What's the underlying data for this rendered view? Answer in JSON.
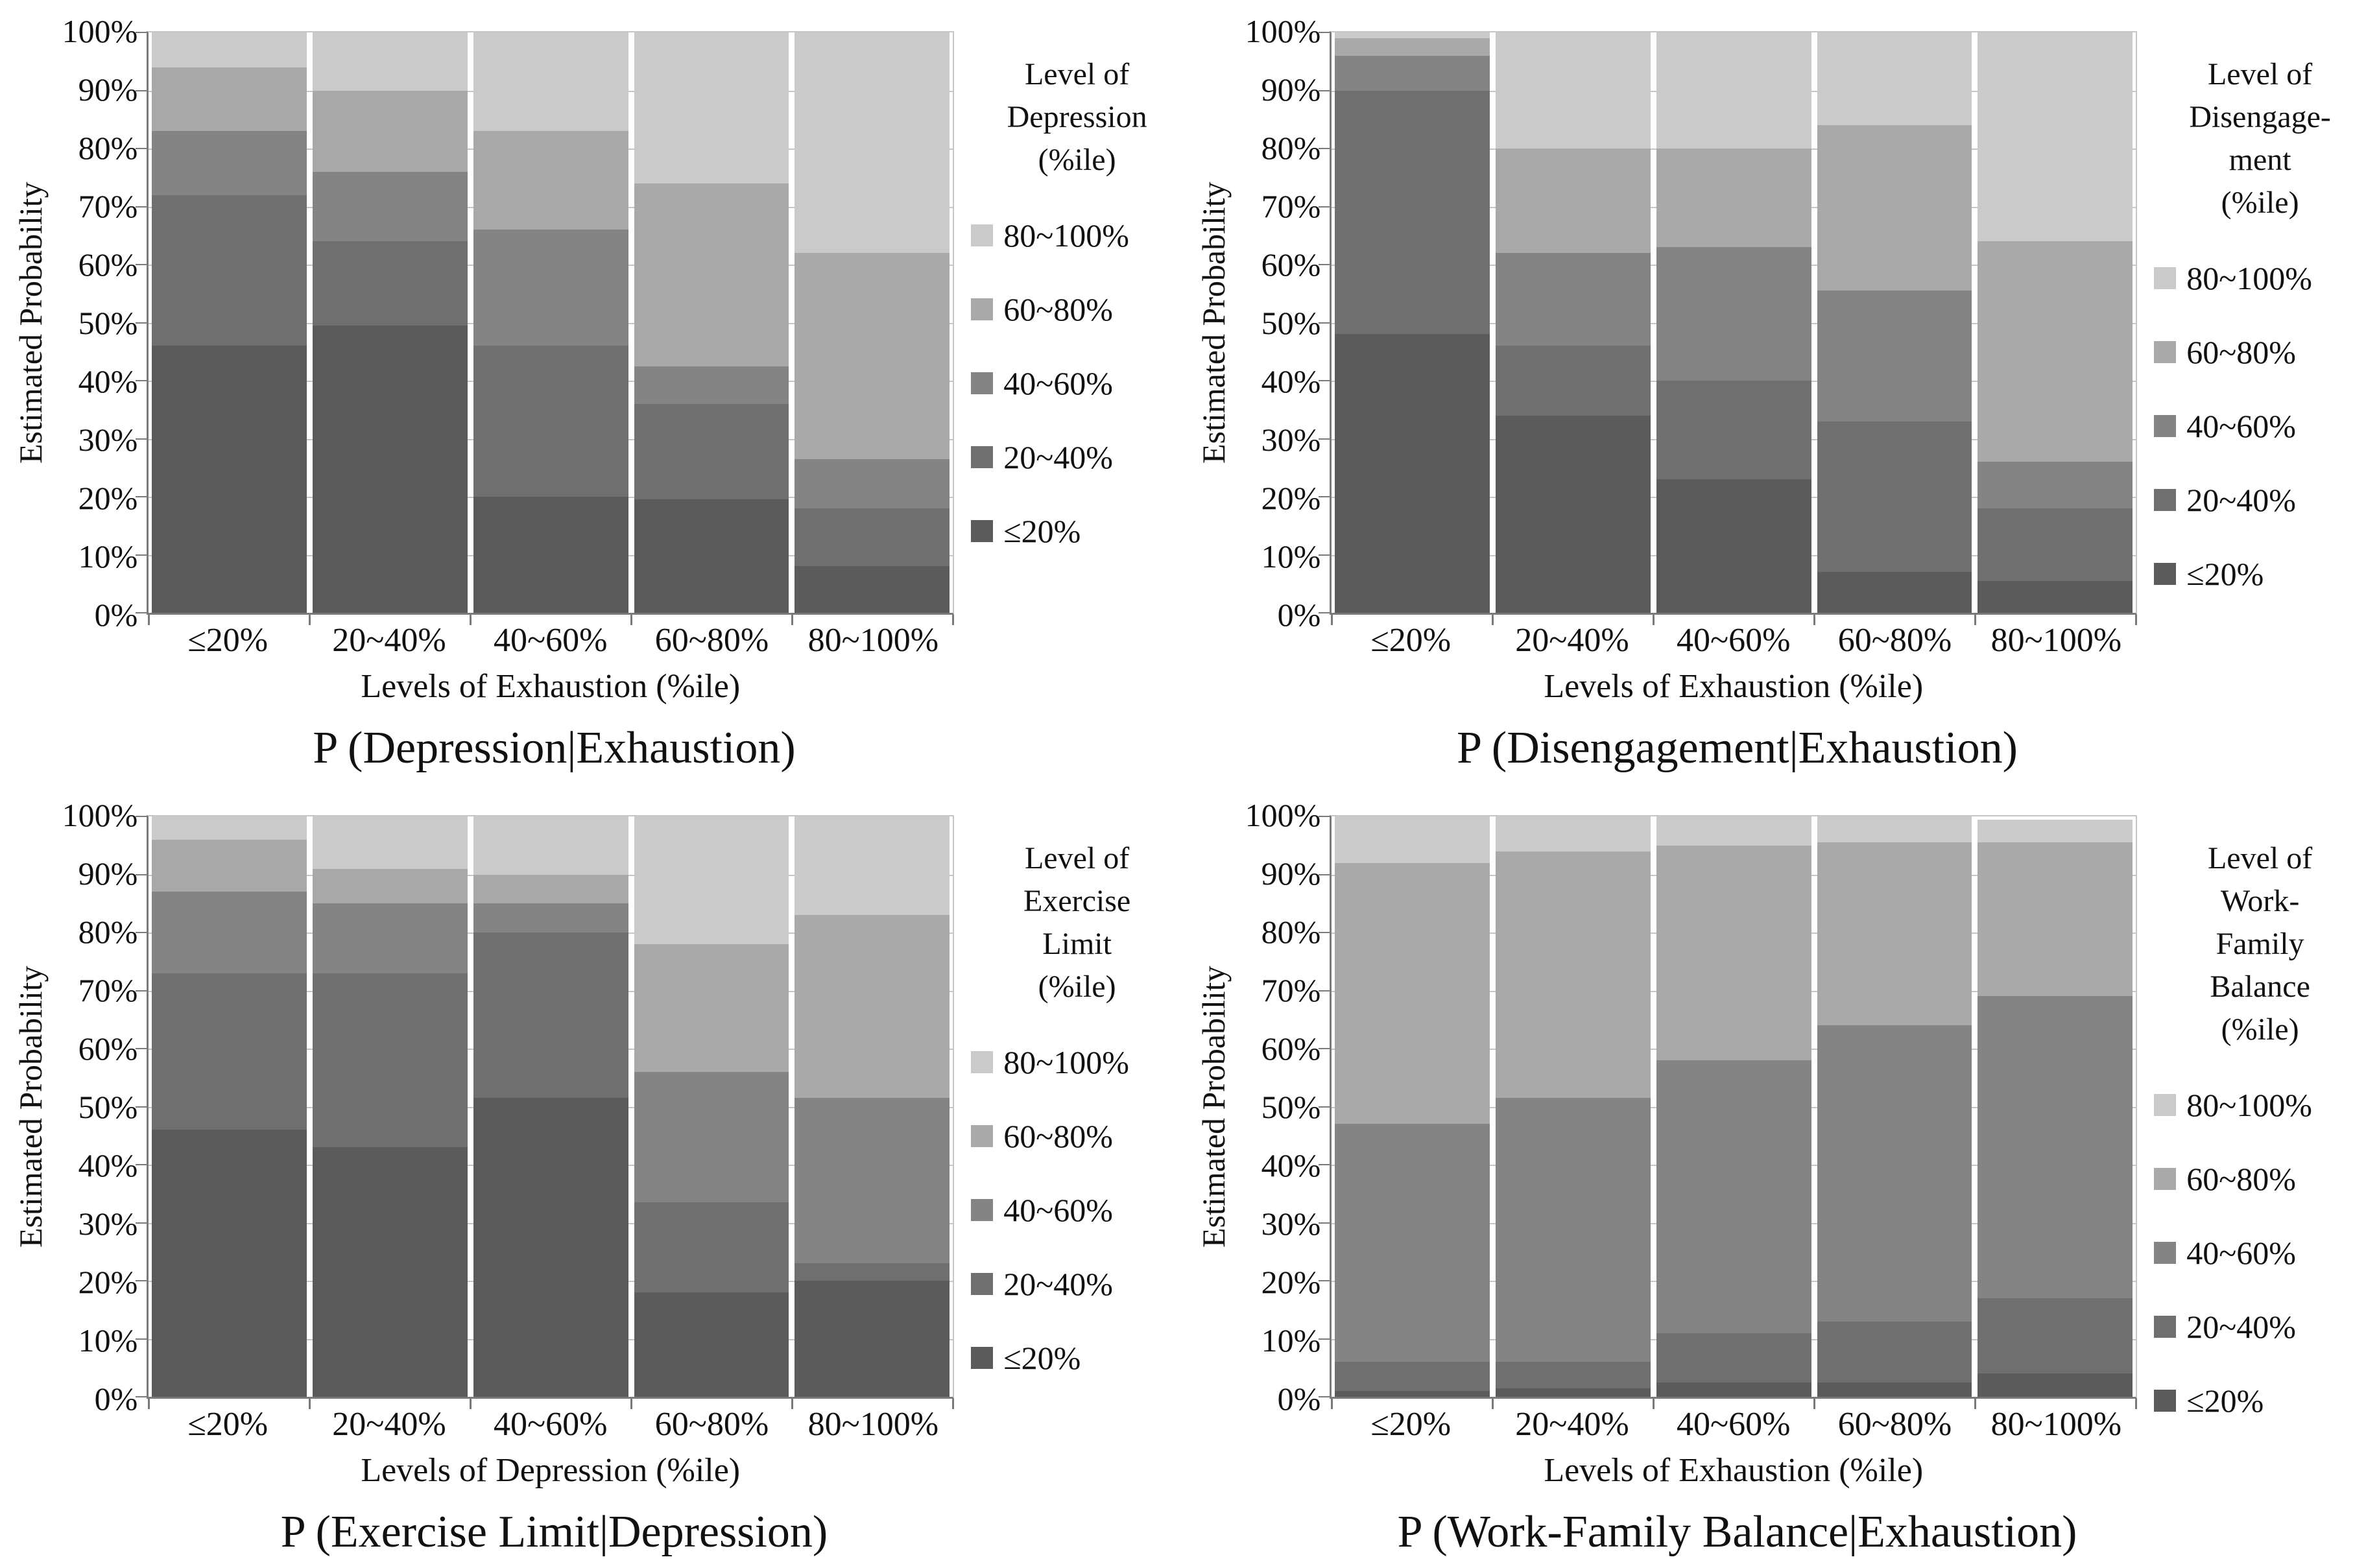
{
  "figure": {
    "background": "#ffffff"
  },
  "colors": {
    "segments": [
      "#5b5b5b",
      "#6f6f6f",
      "#848484",
      "#a9a9a9",
      "#cacaca"
    ],
    "gridline": "#c6c6c6",
    "axis": "#7a7a7a",
    "text": "#111111"
  },
  "y_axis": {
    "label": "Estimated Probability",
    "ticks": [
      "100%",
      "90%",
      "80%",
      "70%",
      "60%",
      "50%",
      "40%",
      "30%",
      "20%",
      "10%",
      "0%"
    ]
  },
  "x_categories": [
    "≤20%",
    "20~40%",
    "40~60%",
    "60~80%",
    "80~100%"
  ],
  "legend_entries_top_to_bottom": [
    "80~100%",
    "60~80%",
    "40~60%",
    "20~40%",
    "≤20%"
  ],
  "chart_data": [
    {
      "type": "bar",
      "stacked": true,
      "title": "P (Depression|Exhaustion)",
      "xlabel": "Levels of Exhaustion (%ile)",
      "ylabel": "Estimated Probability",
      "ylim": [
        0,
        100
      ],
      "grid": true,
      "legend_position": "right",
      "legend_title_lines": [
        "Level of",
        "Depression",
        "(%ile)"
      ],
      "categories": [
        "≤20%",
        "20~40%",
        "40~60%",
        "60~80%",
        "80~100%"
      ],
      "series": [
        {
          "name": "≤20%",
          "values": [
            46,
            49.5,
            20,
            19.5,
            8
          ]
        },
        {
          "name": "20~40%",
          "values": [
            26,
            14.5,
            26,
            16.5,
            10
          ]
        },
        {
          "name": "40~60%",
          "values": [
            11,
            12,
            20,
            6.5,
            8.5
          ]
        },
        {
          "name": "60~80%",
          "values": [
            11,
            14,
            17,
            31.5,
            35.5
          ]
        },
        {
          "name": "80~100%",
          "values": [
            6,
            10,
            17,
            26,
            38
          ]
        }
      ]
    },
    {
      "type": "bar",
      "stacked": true,
      "title": "P (Disengagement|Exhaustion)",
      "xlabel": "Levels of Exhaustion (%ile)",
      "ylabel": "Estimated Probability",
      "ylim": [
        0,
        100
      ],
      "grid": true,
      "legend_position": "right",
      "legend_title_lines": [
        "Level of",
        "Disengage-",
        "ment",
        "(%ile)"
      ],
      "categories": [
        "≤20%",
        "20~40%",
        "40~60%",
        "60~80%",
        "80~100%"
      ],
      "series": [
        {
          "name": "≤20%",
          "values": [
            48,
            34,
            23,
            7,
            5.5
          ]
        },
        {
          "name": "20~40%",
          "values": [
            42,
            12,
            17,
            26,
            12.5
          ]
        },
        {
          "name": "40~60%",
          "values": [
            6,
            16,
            23,
            22.5,
            8
          ]
        },
        {
          "name": "60~80%",
          "values": [
            3,
            18,
            17,
            28.5,
            38
          ]
        },
        {
          "name": "80~100%",
          "values": [
            1,
            20,
            20,
            16,
            36
          ]
        }
      ]
    },
    {
      "type": "bar",
      "stacked": true,
      "title": "P (Exercise Limit|Depression)",
      "xlabel": "Levels of Depression (%ile)",
      "ylabel": "Estimated Probability",
      "ylim": [
        0,
        100
      ],
      "grid": true,
      "legend_position": "right",
      "legend_title_lines": [
        "Level of",
        "Exercise",
        "Limit",
        "(%ile)"
      ],
      "categories": [
        "≤20%",
        "20~40%",
        "40~60%",
        "60~80%",
        "80~100%"
      ],
      "series": [
        {
          "name": "≤20%",
          "values": [
            46,
            43,
            51.5,
            18,
            20
          ]
        },
        {
          "name": "20~40%",
          "values": [
            27,
            30,
            28.5,
            15.5,
            3
          ]
        },
        {
          "name": "40~60%",
          "values": [
            14,
            12,
            5,
            22.5,
            28.5
          ]
        },
        {
          "name": "60~80%",
          "values": [
            9,
            6,
            5,
            22,
            31.5
          ]
        },
        {
          "name": "80~100%",
          "values": [
            4,
            9,
            10,
            22,
            17
          ]
        }
      ]
    },
    {
      "type": "bar",
      "stacked": true,
      "title": "P (Work-Family Balance|Exhaustion)",
      "xlabel": "Levels of Exhaustion (%ile)",
      "ylabel": "Estimated Probability",
      "ylim": [
        0,
        100
      ],
      "grid": true,
      "legend_position": "right",
      "legend_title_lines": [
        "Level of",
        "Work-",
        "Family",
        "Balance",
        "(%ile)"
      ],
      "categories": [
        "≤20%",
        "20~40%",
        "40~60%",
        "60~80%",
        "80~100%"
      ],
      "series": [
        {
          "name": "≤20%",
          "values": [
            1,
            1.5,
            2.5,
            2.5,
            4
          ]
        },
        {
          "name": "20~40%",
          "values": [
            5,
            4.5,
            8.5,
            10.5,
            13
          ]
        },
        {
          "name": "40~60%",
          "values": [
            41,
            45.5,
            47,
            51,
            52
          ]
        },
        {
          "name": "60~80%",
          "values": [
            45,
            42.5,
            37,
            31.5,
            26.5
          ]
        },
        {
          "name": "80~100%",
          "values": [
            8,
            6,
            5,
            4.5,
            4
          ]
        }
      ]
    }
  ]
}
